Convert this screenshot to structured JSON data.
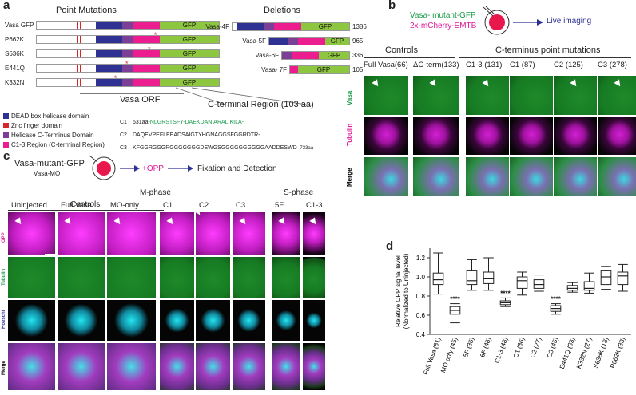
{
  "panel_a": {
    "label": "a",
    "point_mutations_title": "Point Mutations",
    "deletions_title": "Deletions",
    "point_constructs": [
      "Vasa GFP",
      "P662K",
      "S636K",
      "E441Q",
      "K332N"
    ],
    "deletion_constructs": [
      {
        "name": "Vasa-4F",
        "size": "1386"
      },
      {
        "name": "Vasa-5F",
        "size": "965"
      },
      {
        "name": "Vasa-6F",
        "size": "336"
      },
      {
        "name": "Vasa- 7F",
        "size": "105"
      }
    ],
    "gfp_label": "GFP",
    "orf_label": "Vasa ORF",
    "cterm_label": "C-terminal Region (103 aa)",
    "legend": [
      {
        "label": "DEAD box helicase domain",
        "color": "#2e3192"
      },
      {
        "label": "Znc finger domain",
        "color": "#d7262a"
      },
      {
        "label": "Helicase C-Terminus Domain",
        "color": "#7b3f98"
      },
      {
        "label": "C1-3 Region (C-terminal Region)",
        "color": "#ec1e8f"
      }
    ],
    "sequences": [
      {
        "id": "C1",
        "prefix": "631aa-",
        "seq": "NLGRSTSFY-DAEKDANIARALIKILA-"
      },
      {
        "id": "C2",
        "prefix": "",
        "seq": "DAQEVPEFLEEADSAIGTYHGNAGGSFGGRDTR-"
      },
      {
        "id": "C3",
        "prefix": "",
        "seq": "KFGGRGGGRGGGGGGGDEWGSGGGGGGGGGGAADDESWD",
        "suffix": "- 733aa"
      }
    ]
  },
  "panel_b": {
    "label": "b",
    "legend_line1": "Vasa- mutant-GFP",
    "legend_line2": "2x-mCherry-EMTB",
    "live_imaging": "Live imaging",
    "controls_header": "Controls",
    "cterm_header": "C-terminus point mutations",
    "columns": [
      "Full Vasa(66)",
      "ΔC-term(133)",
      "C1-3 (131)",
      "C1 (87)",
      "C2 (125)",
      "C3 (278)"
    ],
    "rows": [
      "Vasa",
      "Tubulin",
      "Merge"
    ]
  },
  "panel_c": {
    "label": "c",
    "construct_line1": "Vasa-mutant-GFP",
    "construct_line2": "Vasa-MO",
    "opp_step": "+OPP",
    "fixation": "Fixation and Detection",
    "mphase_header": "M-phase",
    "sphase_header": "S-phase",
    "controls_header": "Controls",
    "columns": [
      "Uninjected",
      "Full Vasa",
      "MO-only",
      "C1",
      "C2",
      "C3",
      "5F",
      "C1-3"
    ],
    "rows": [
      "OPP",
      "Tubulin",
      "Hoescht",
      "Merge"
    ]
  },
  "panel_d": {
    "label": "d",
    "chart_data": {
      "type": "box",
      "ylabel": "Relative OPP signal level (Normalized to Uninjected)",
      "ylim": [
        0.4,
        1.3
      ],
      "yticks": [
        "0.4",
        "0.6",
        "0.8",
        "1.0",
        "1.2"
      ],
      "categories": [
        "Full Vasa (81)",
        "MO only (45)",
        "5F (36)",
        "6F (48)",
        "C1-3 (48)",
        "C1 (36)",
        "C2 (27)",
        "C3 (45)",
        "E441Q (33)",
        "K332N (27)",
        "S636K (18)",
        "P662K (33)"
      ],
      "boxes": [
        {
          "min": 0.82,
          "q1": 0.92,
          "median": 0.97,
          "q3": 1.04,
          "max": 1.25,
          "sig": ""
        },
        {
          "min": 0.52,
          "q1": 0.61,
          "median": 0.65,
          "q3": 0.69,
          "max": 0.72,
          "sig": "****"
        },
        {
          "min": 0.86,
          "q1": 0.92,
          "median": 0.96,
          "q3": 1.07,
          "max": 1.18,
          "sig": ""
        },
        {
          "min": 0.86,
          "q1": 0.93,
          "median": 0.98,
          "q3": 1.05,
          "max": 1.2,
          "sig": ""
        },
        {
          "min": 0.69,
          "q1": 0.71,
          "median": 0.73,
          "q3": 0.75,
          "max": 0.78,
          "sig": "****"
        },
        {
          "min": 0.81,
          "q1": 0.88,
          "median": 0.96,
          "q3": 1.0,
          "max": 1.05,
          "sig": ""
        },
        {
          "min": 0.85,
          "q1": 0.88,
          "median": 0.92,
          "q3": 0.97,
          "max": 1.02,
          "sig": ""
        },
        {
          "min": 0.61,
          "q1": 0.64,
          "median": 0.67,
          "q3": 0.7,
          "max": 0.72,
          "sig": "****"
        },
        {
          "min": 0.84,
          "q1": 0.86,
          "median": 0.88,
          "q3": 0.91,
          "max": 0.94,
          "sig": ""
        },
        {
          "min": 0.83,
          "q1": 0.86,
          "median": 0.88,
          "q3": 0.95,
          "max": 1.04,
          "sig": ""
        },
        {
          "min": 0.87,
          "q1": 0.92,
          "median": 1.0,
          "q3": 1.07,
          "max": 1.11,
          "sig": ""
        },
        {
          "min": 0.85,
          "q1": 0.92,
          "median": 1.01,
          "q3": 1.05,
          "max": 1.13,
          "sig": ""
        }
      ]
    }
  },
  "colors": {
    "green": "#1a9a4a",
    "magenta": "#e01a9a",
    "gfp": "#8dc63f",
    "cyan": "#1ad6e0"
  }
}
